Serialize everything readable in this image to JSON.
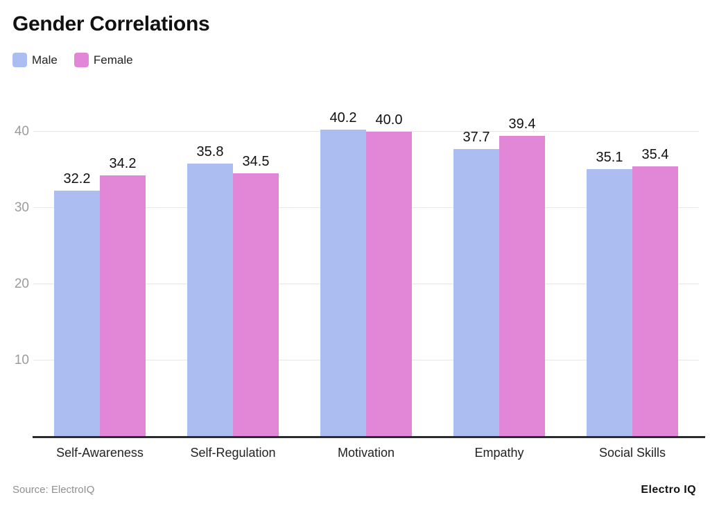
{
  "title": "Gender Correlations",
  "legend": {
    "items": [
      {
        "label": "Male",
        "color": "#abbdf1"
      },
      {
        "label": "Female",
        "color": "#e287d8"
      }
    ]
  },
  "footer": {
    "source": "Source: ElectroIQ",
    "brand": "Electro IQ"
  },
  "colors": {
    "grid": "#e7e7e7",
    "tick_label": "#9b9b9b",
    "axis": "#2b2b2b",
    "value_label": "#111111",
    "category_label": "#222222"
  },
  "chart_data": {
    "type": "bar",
    "title": "Gender Correlations",
    "categories": [
      "Self-Awareness",
      "Self-Regulation",
      "Motivation",
      "Empathy",
      "Social Skills"
    ],
    "series": [
      {
        "name": "Male",
        "color": "#abbdf1",
        "values": [
          32.2,
          35.8,
          40.2,
          37.7,
          35.1
        ]
      },
      {
        "name": "Female",
        "color": "#e287d8",
        "values": [
          34.2,
          34.5,
          40.0,
          39.4,
          35.4
        ]
      }
    ],
    "yticks": [
      10,
      20,
      30,
      40
    ],
    "ylim": [
      0,
      44.5
    ],
    "xlabel": "",
    "ylabel": "",
    "grid": true,
    "legend_position": "top-left",
    "value_labels": true,
    "value_label_decimals": 1
  }
}
